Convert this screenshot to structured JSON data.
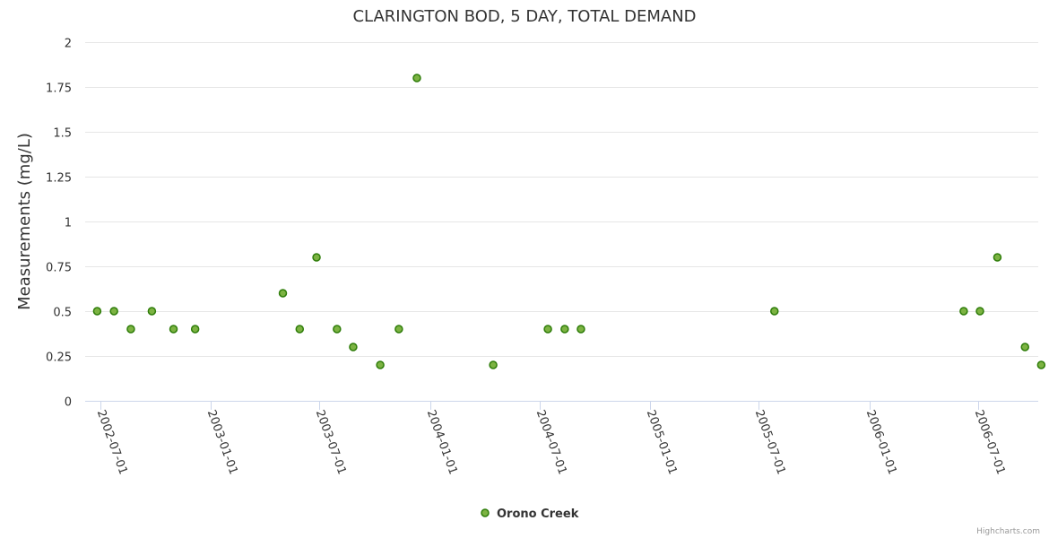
{
  "chart_data": {
    "type": "scatter",
    "title": "CLARINGTON BOD, 5 DAY, TOTAL DEMAND",
    "xlabel": "",
    "ylabel": "Measurements (mg/L)",
    "ylim": [
      0,
      2
    ],
    "yticks": [
      0,
      0.25,
      0.5,
      0.75,
      1,
      1.25,
      1.5,
      1.75,
      2
    ],
    "ytick_labels": [
      "0",
      "0.25",
      "0.5",
      "0.75",
      "1",
      "1.25",
      "1.5",
      "1.75",
      "2"
    ],
    "xlim": [
      "2002-06-06",
      "2006-10-09"
    ],
    "xticks": [
      "2002-07-01",
      "2003-01-01",
      "2003-07-01",
      "2004-01-01",
      "2004-07-01",
      "2005-01-01",
      "2005-07-01",
      "2006-01-01",
      "2006-07-01"
    ],
    "grid": true,
    "legend_position": "bottom-center",
    "series": [
      {
        "name": "Orono Creek",
        "color": "#7cb342",
        "stroke": "#2f7d0a",
        "points": [
          {
            "x": "2002-06-26",
            "y": 0.5
          },
          {
            "x": "2002-07-24",
            "y": 0.5
          },
          {
            "x": "2002-08-21",
            "y": 0.4
          },
          {
            "x": "2002-09-25",
            "y": 0.5
          },
          {
            "x": "2002-10-31",
            "y": 0.4
          },
          {
            "x": "2002-12-06",
            "y": 0.4
          },
          {
            "x": "2003-05-01",
            "y": 0.6
          },
          {
            "x": "2003-05-29",
            "y": 0.4
          },
          {
            "x": "2003-06-26",
            "y": 0.8
          },
          {
            "x": "2003-07-30",
            "y": 0.4
          },
          {
            "x": "2003-08-26",
            "y": 0.3
          },
          {
            "x": "2003-10-10",
            "y": 0.2
          },
          {
            "x": "2003-11-10",
            "y": 0.4
          },
          {
            "x": "2003-12-10",
            "y": 1.8
          },
          {
            "x": "2004-04-15",
            "y": 0.2
          },
          {
            "x": "2004-07-15",
            "y": 0.4
          },
          {
            "x": "2004-08-12",
            "y": 0.4
          },
          {
            "x": "2004-09-08",
            "y": 0.4
          },
          {
            "x": "2005-07-27",
            "y": 0.5
          },
          {
            "x": "2006-06-07",
            "y": 0.5
          },
          {
            "x": "2006-07-04",
            "y": 0.5
          },
          {
            "x": "2006-08-02",
            "y": 0.8
          },
          {
            "x": "2006-09-17",
            "y": 0.3
          },
          {
            "x": "2006-10-14",
            "y": 0.2
          }
        ]
      }
    ]
  },
  "credits": "Highcharts.com"
}
